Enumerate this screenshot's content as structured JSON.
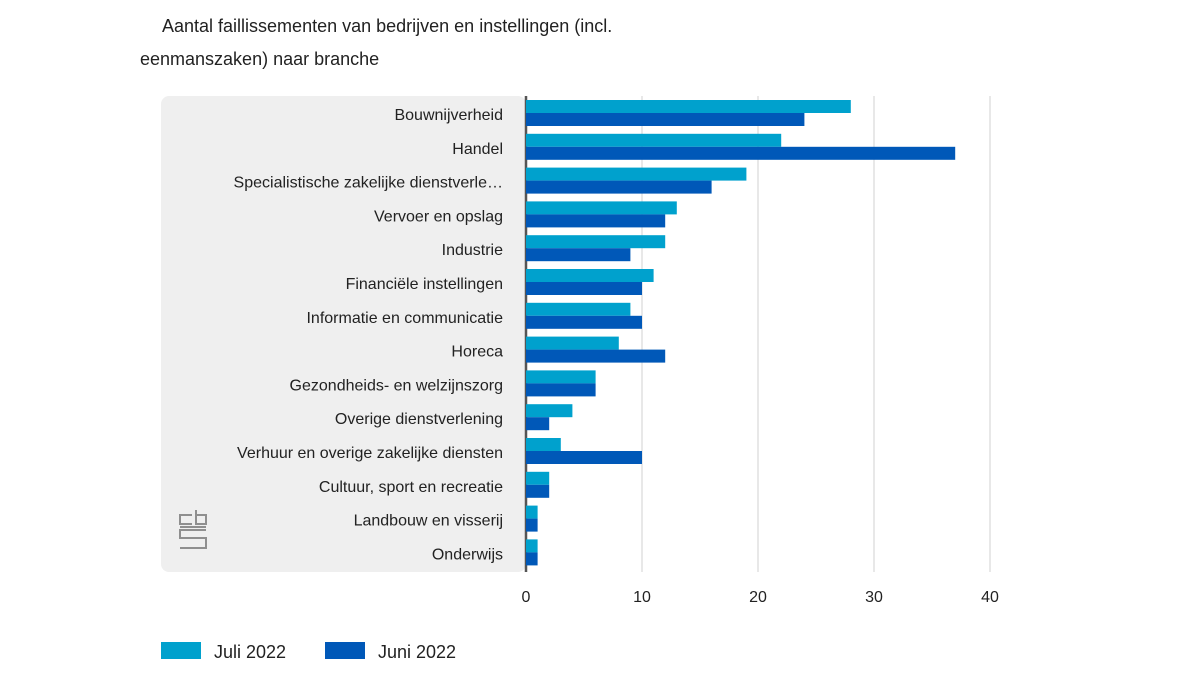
{
  "title_line1": "Aantal faillissementen van bedrijven en instellingen (incl.",
  "title_line2": "eenmanszaken) naar branche",
  "logo_text": "cbs",
  "chart_data": {
    "type": "bar",
    "orientation": "horizontal",
    "categories": [
      "Bouwnijverheid",
      "Handel",
      "Specialistische zakelijke dienstverle…",
      "Vervoer en opslag",
      "Industrie",
      "Financiële instellingen",
      "Informatie en communicatie",
      "Horeca",
      "Gezondheids- en welzijnszorg",
      "Overige dienstverlening",
      "Verhuur en overige zakelijke diensten",
      "Cultuur, sport en recreatie",
      "Landbouw en visserij",
      "Onderwijs"
    ],
    "series": [
      {
        "name": "Juli 2022",
        "color": "#00a1cd",
        "values": [
          28,
          22,
          19,
          13,
          12,
          11,
          9,
          8,
          6,
          4,
          3,
          2,
          1,
          1
        ]
      },
      {
        "name": "Juni 2022",
        "color": "#0058b8",
        "values": [
          24,
          37,
          16,
          12,
          9,
          10,
          10,
          12,
          6,
          2,
          10,
          2,
          1,
          1
        ]
      }
    ],
    "xlim": [
      0,
      40
    ],
    "xticks": [
      0,
      10,
      20,
      30,
      40
    ],
    "grid": true,
    "legend": "bottom-left"
  }
}
